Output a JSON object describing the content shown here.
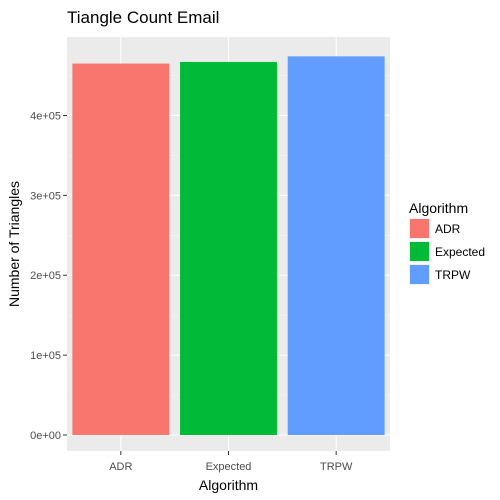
{
  "chart_data": {
    "type": "bar",
    "title": "Tiangle Count Email",
    "xlabel": "Algorithm",
    "ylabel": "Number of Triangles",
    "categories": [
      "ADR",
      "Expected",
      "TRPW"
    ],
    "values": [
      465000,
      467000,
      474000
    ],
    "colors": [
      "#F8766D",
      "#00BA38",
      "#619CFF"
    ],
    "ylim": [
      0,
      497000
    ],
    "y_ticks": [
      0,
      100000,
      200000,
      300000,
      400000
    ],
    "y_tick_labels": [
      "0e+00",
      "1e+05",
      "2e+05",
      "3e+05",
      "4e+05"
    ],
    "grid": true,
    "legend": {
      "title": "Algorithm",
      "placement": "right",
      "entries": [
        "ADR",
        "Expected",
        "TRPW"
      ]
    }
  }
}
